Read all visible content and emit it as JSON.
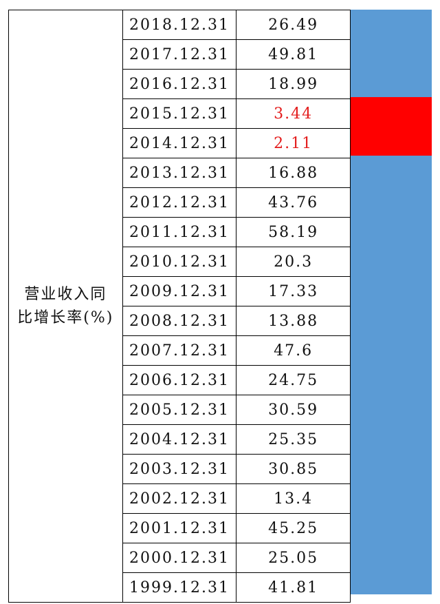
{
  "metric_label": "营业收入同\n比增长率(%)",
  "rows": [
    {
      "date": "2018.12.31",
      "value": "26.49",
      "highlight": false
    },
    {
      "date": "2017.12.31",
      "value": "49.81",
      "highlight": false
    },
    {
      "date": "2016.12.31",
      "value": "18.99",
      "highlight": false
    },
    {
      "date": "2015.12.31",
      "value": "3.44",
      "highlight": true
    },
    {
      "date": "2014.12.31",
      "value": "2.11",
      "highlight": true
    },
    {
      "date": "2013.12.31",
      "value": "16.88",
      "highlight": false
    },
    {
      "date": "2012.12.31",
      "value": "43.76",
      "highlight": false
    },
    {
      "date": "2011.12.31",
      "value": "58.19",
      "highlight": false
    },
    {
      "date": "2010.12.31",
      "value": "20.3",
      "highlight": false
    },
    {
      "date": "2009.12.31",
      "value": "17.33",
      "highlight": false
    },
    {
      "date": "2008.12.31",
      "value": "13.88",
      "highlight": false
    },
    {
      "date": "2007.12.31",
      "value": "47.6",
      "highlight": false
    },
    {
      "date": "2006.12.31",
      "value": "24.75",
      "highlight": false
    },
    {
      "date": "2005.12.31",
      "value": "30.59",
      "highlight": false
    },
    {
      "date": "2004.12.31",
      "value": "25.35",
      "highlight": false
    },
    {
      "date": "2003.12.31",
      "value": "30.85",
      "highlight": false
    },
    {
      "date": "2002.12.31",
      "value": "13.4",
      "highlight": false
    },
    {
      "date": "2001.12.31",
      "value": "45.25",
      "highlight": false
    },
    {
      "date": "2000.12.31",
      "value": "25.05",
      "highlight": false
    },
    {
      "date": "1999.12.31",
      "value": "41.81",
      "highlight": false
    }
  ],
  "colors": {
    "band": "#5b9bd5",
    "band_highlight": "#ff0000",
    "highlight_text": "#e31b1b"
  }
}
